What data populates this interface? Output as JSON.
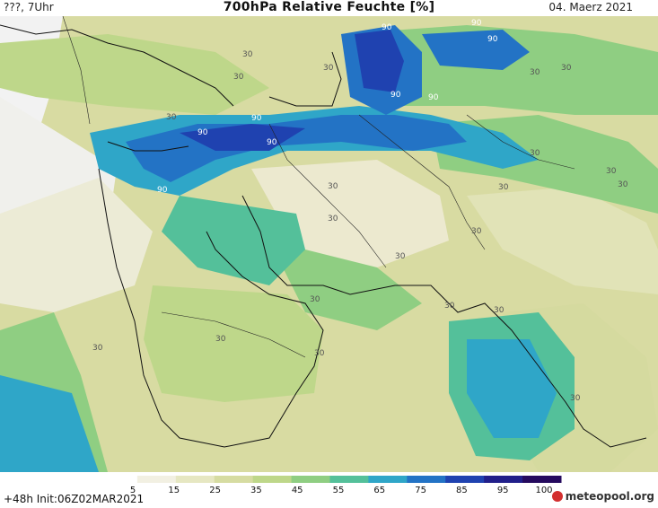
{
  "header": {
    "left": "???, 7Uhr",
    "title": "700hPa Relative Feuchte [%]",
    "right": "04. Maerz 2021"
  },
  "footer": {
    "init": "+48h Init:06Z02MAR2021",
    "logo": "meteopool.org"
  },
  "colorbar": {
    "tick_labels": [
      "5",
      "15",
      "25",
      "35",
      "45",
      "55",
      "65",
      "75",
      "85",
      "95",
      "100"
    ],
    "colors": [
      "#ffffff",
      "#f2f0e2",
      "#e6e7c2",
      "#d6dca2",
      "#bed78a",
      "#8fce82",
      "#54c09a",
      "#2fa6c8",
      "#2373c5",
      "#1f42b0",
      "#211f8a",
      "#250a5e"
    ]
  },
  "contour_labels": {
    "thirty": "30",
    "ninety": "90"
  },
  "legend": {
    "gray": "#f2f2f2"
  }
}
